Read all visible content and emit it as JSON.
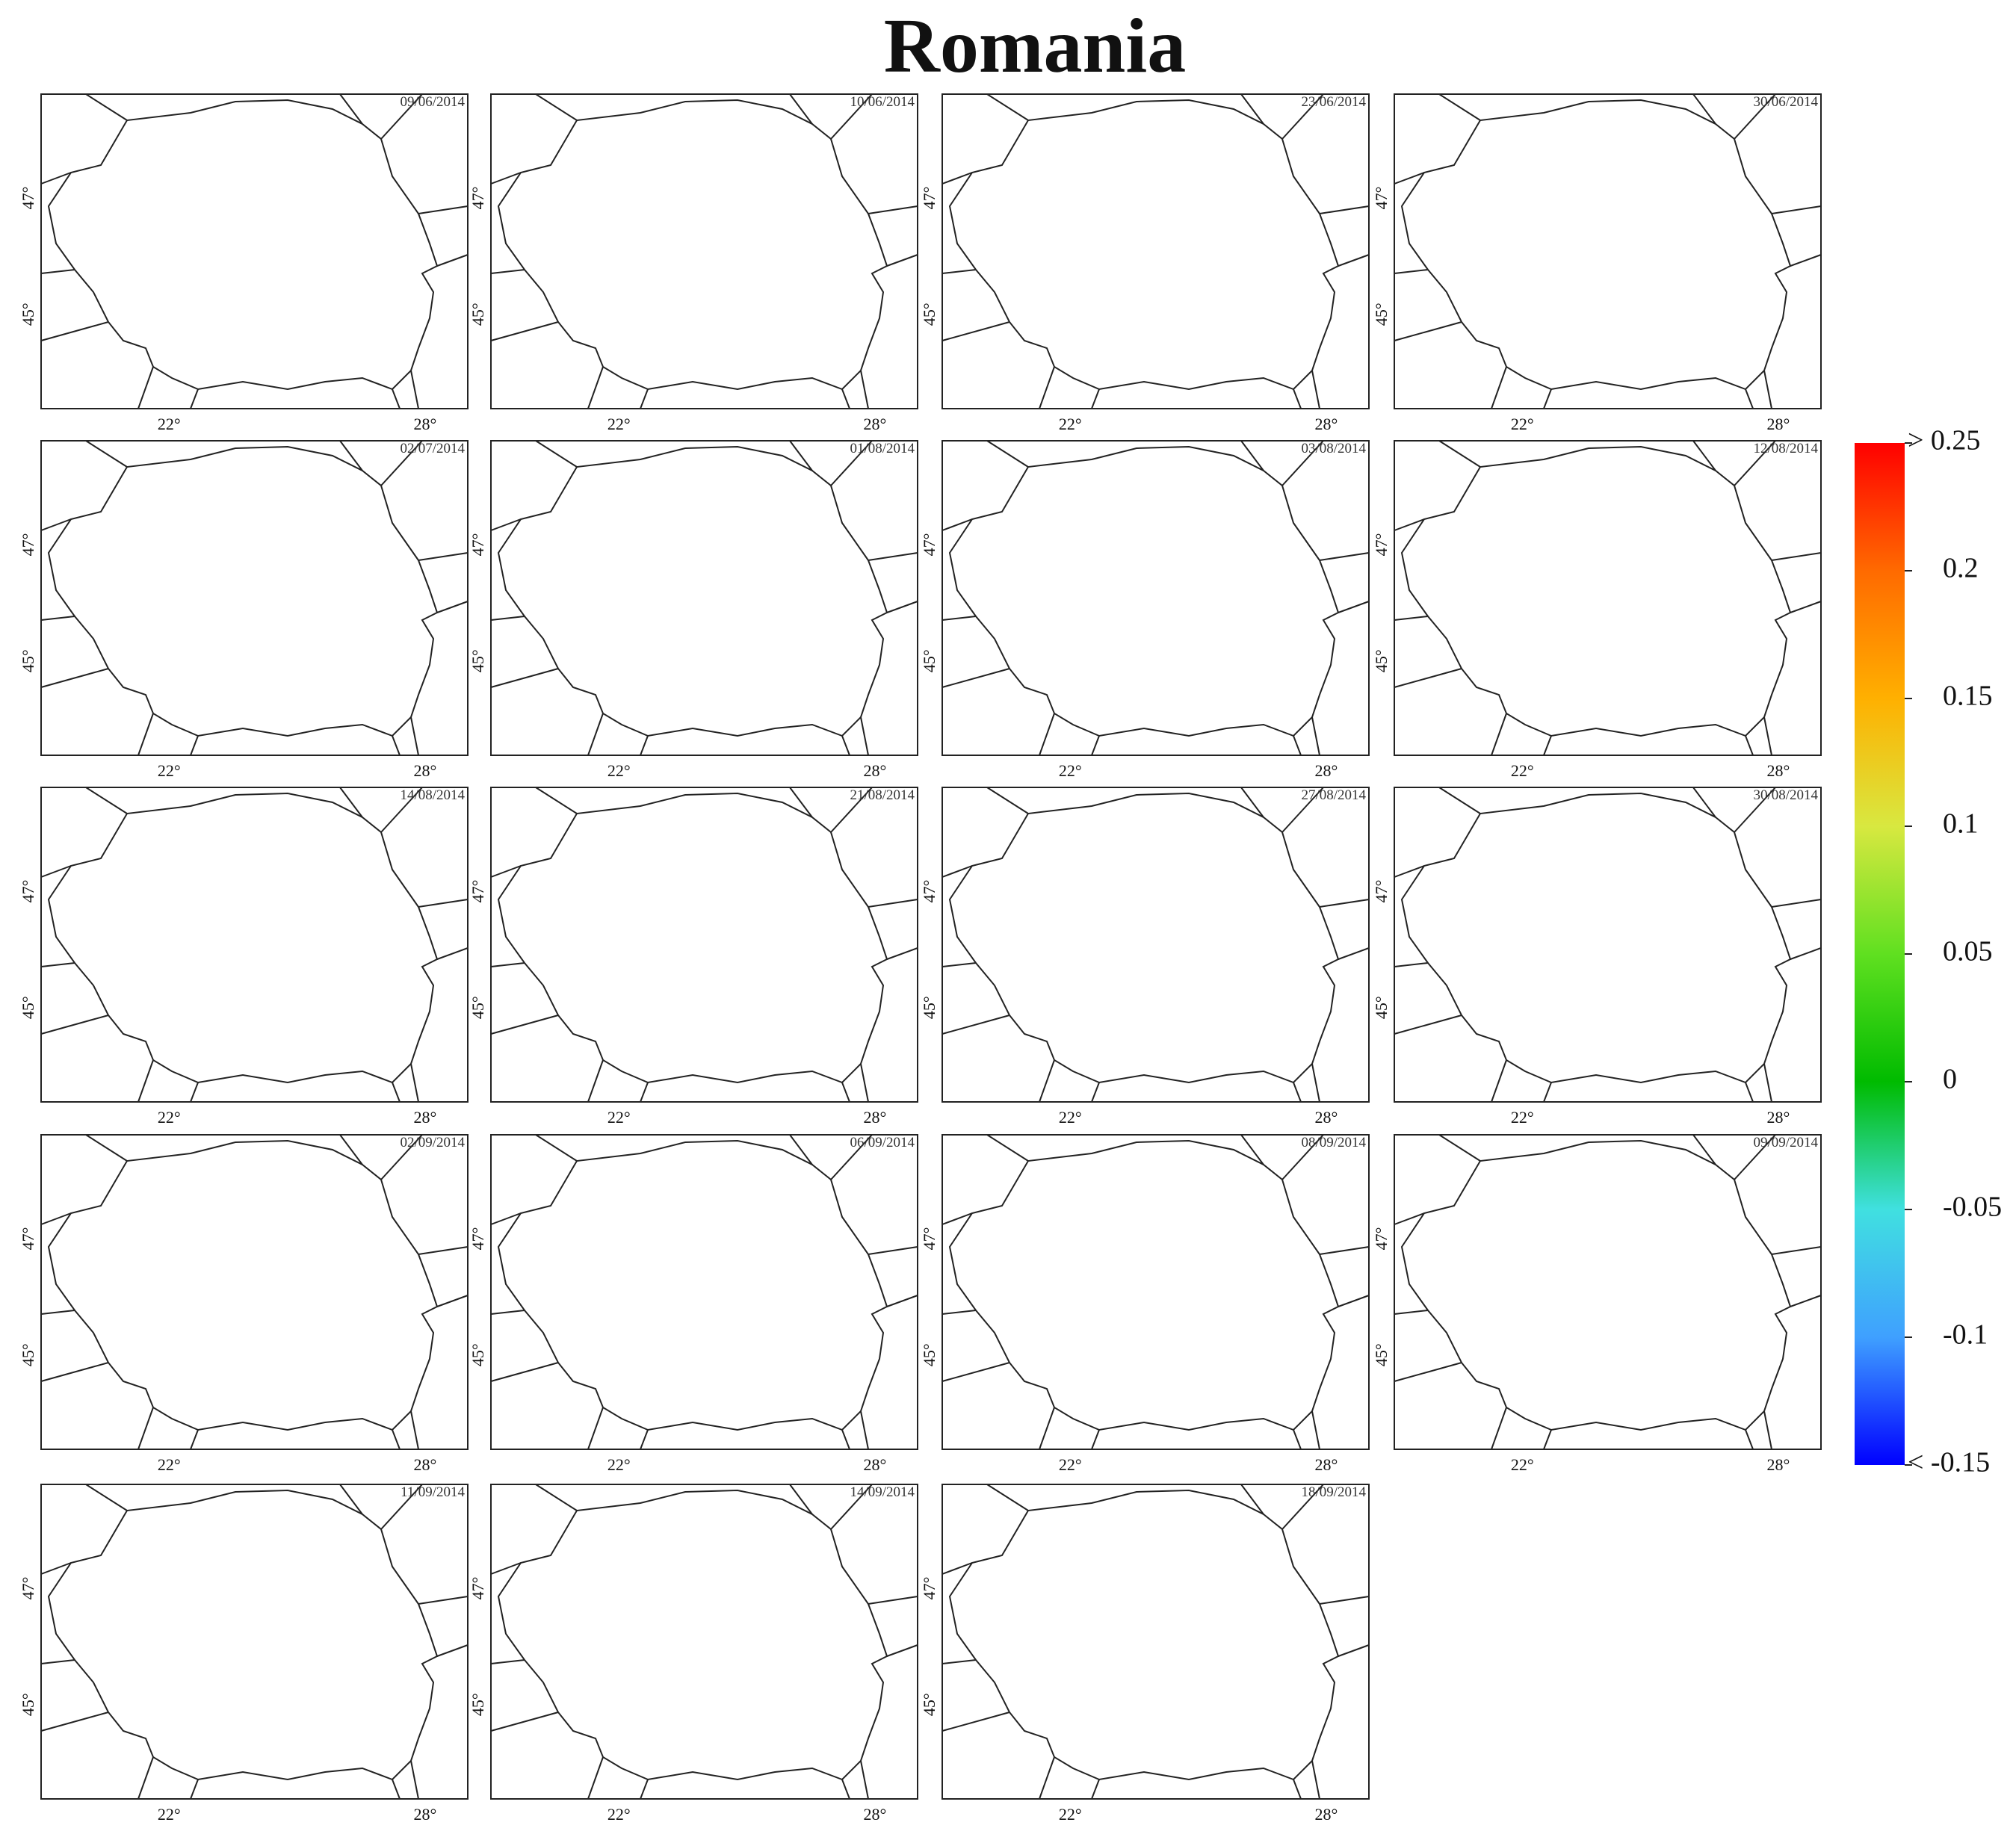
{
  "title": "Romania",
  "panels": [
    {
      "date": "09/06/2014"
    },
    {
      "date": "10/06/2014"
    },
    {
      "date": "23/06/2014"
    },
    {
      "date": "30/06/2014"
    },
    {
      "date": "02/07/2014"
    },
    {
      "date": "01/08/2014"
    },
    {
      "date": "03/08/2014"
    },
    {
      "date": "12/08/2014"
    },
    {
      "date": "14/08/2014"
    },
    {
      "date": "21/08/2014"
    },
    {
      "date": "27/08/2014"
    },
    {
      "date": "30/08/2014"
    },
    {
      "date": "02/09/2014"
    },
    {
      "date": "06/09/2014"
    },
    {
      "date": "08/09/2014"
    },
    {
      "date": "09/09/2014"
    },
    {
      "date": "11/09/2014"
    },
    {
      "date": "14/09/2014"
    },
    {
      "date": "18/09/2014"
    }
  ],
  "lon_labels": [
    "22°",
    "28°"
  ],
  "lat_labels": [
    "47°",
    "45°"
  ],
  "colorbar": {
    "colors": [
      "#0000ff",
      "#3fa0ff",
      "#40e0e0",
      "#00bb00",
      "#60e020",
      "#d8e840",
      "#ffb000",
      "#ff6a00",
      "#ff0000"
    ],
    "lim": [
      -0.15,
      0.25
    ],
    "ticks": [
      {
        "value": 0.25,
        "label": "> 0.25"
      },
      0.2,
      0.15,
      0.1,
      0.05,
      0,
      -0.05,
      -0.1,
      {
        "value": -0.15,
        "label": "< -0.15"
      }
    ]
  }
}
